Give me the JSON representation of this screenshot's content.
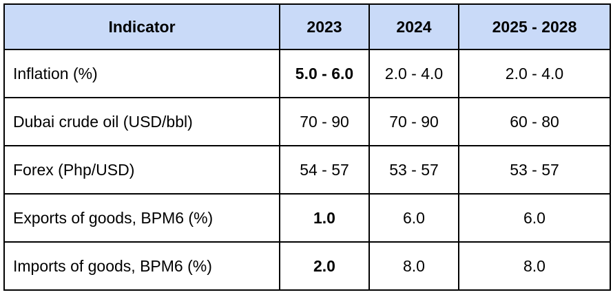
{
  "table": {
    "headers": [
      "Indicator",
      "2023",
      "2024",
      "2025 - 2028"
    ],
    "rows": [
      {
        "label": "Inflation (%)",
        "values": [
          "5.0 - 6.0",
          "2.0 - 4.0",
          "2.0 - 4.0"
        ],
        "bold": [
          true,
          false,
          false
        ]
      },
      {
        "label": "Dubai crude oil (USD/bbl)",
        "values": [
          "70 - 90",
          "70 - 90",
          "60 - 80"
        ],
        "bold": [
          false,
          false,
          false
        ]
      },
      {
        "label": "Forex (Php/USD)",
        "values": [
          "54 - 57",
          "53 - 57",
          "53 - 57"
        ],
        "bold": [
          false,
          false,
          false
        ]
      },
      {
        "label": "Exports of goods, BPM6 (%)",
        "values": [
          "1.0",
          "6.0",
          "6.0"
        ],
        "bold": [
          true,
          false,
          false
        ]
      },
      {
        "label": "Imports of goods, BPM6  (%)",
        "values": [
          "2.0",
          "8.0",
          "8.0"
        ],
        "bold": [
          true,
          false,
          false
        ]
      }
    ]
  },
  "colors": {
    "header_background": "#c9daf8",
    "border": "#000000",
    "text": "#000000"
  }
}
